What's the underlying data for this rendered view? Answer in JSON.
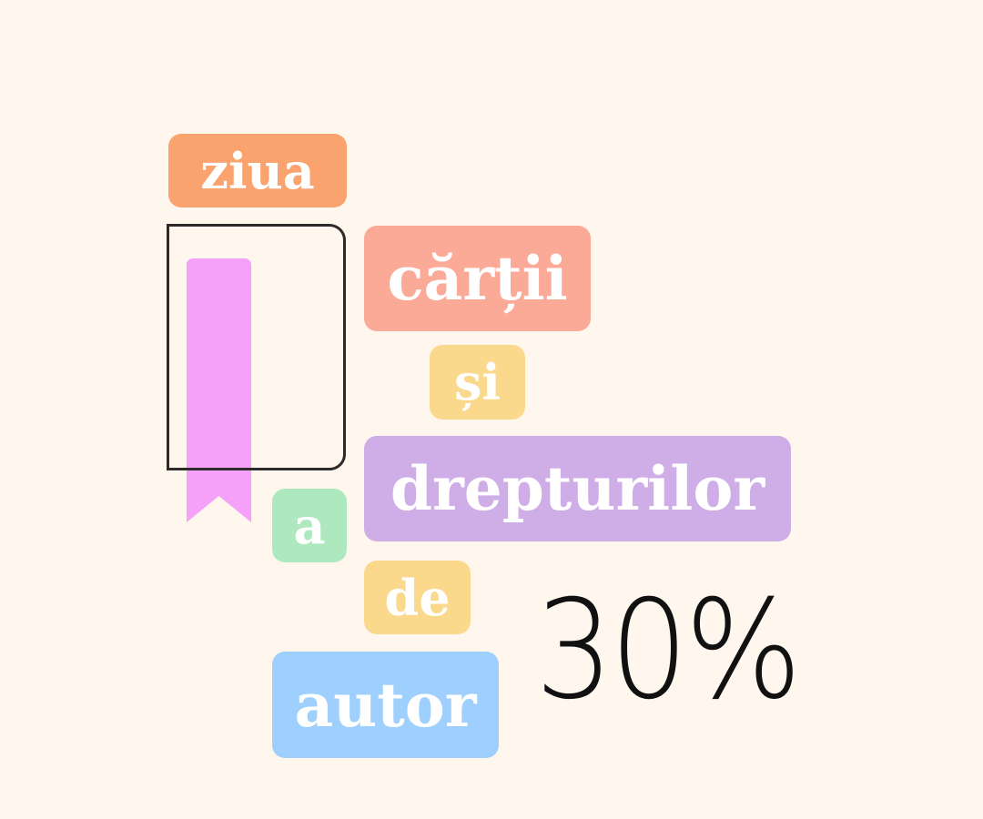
{
  "words": {
    "ziua": "ziua",
    "cartii": "cărții",
    "si": "și",
    "drepturilor": "drepturilor",
    "a": "a",
    "de": "de",
    "autor": "autor"
  },
  "stat": {
    "value": "30%"
  },
  "icon": {
    "name": "book-with-bookmark-icon"
  },
  "colors": {
    "background": "#fff7ee",
    "ziua": "#fba36f",
    "cartii": "#fcaa98",
    "si": "#fbd98c",
    "drepturilor": "#cfaee8",
    "a": "#aee8be",
    "de": "#fbd98c",
    "autor": "#9fd0fd",
    "bookmark": "#f5a0f9",
    "book_outline": "#2c2a2a"
  }
}
